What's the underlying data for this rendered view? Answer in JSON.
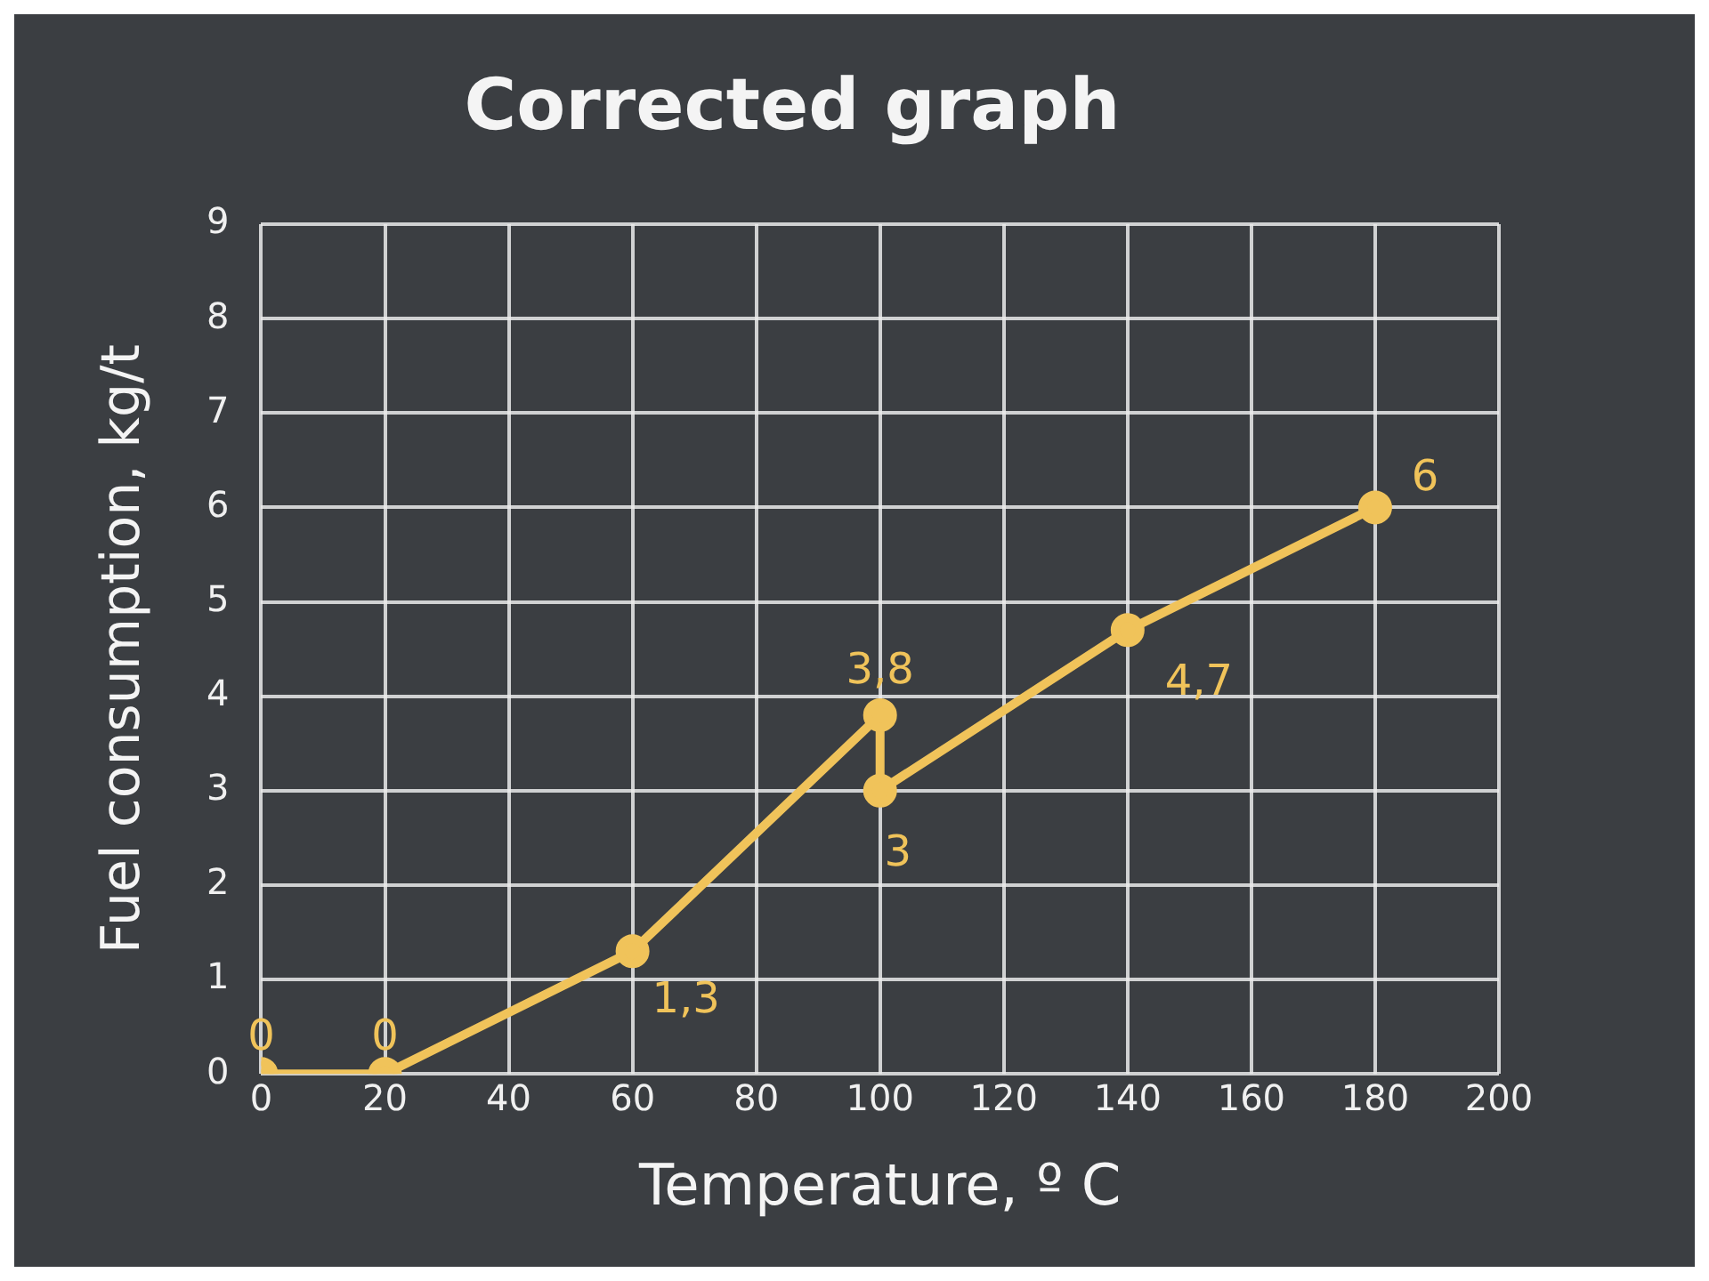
{
  "chart_data": {
    "type": "line",
    "title": "Corrected graph",
    "xlabel": "Temperature, º C",
    "ylabel": "Fuel consumption, kg/t",
    "x": [
      0,
      20,
      60,
      100,
      100,
      140,
      180
    ],
    "series": [
      {
        "color": "#f0c35a",
        "values": [
          0,
          0,
          1.3,
          3.8,
          3,
          4.7,
          6
        ],
        "value_labels": [
          "0",
          "0",
          "1,3",
          "3,8",
          "3",
          "4,7",
          "6"
        ]
      }
    ],
    "xlim": [
      0,
      200
    ],
    "xticks": [
      0,
      20,
      40,
      60,
      80,
      100,
      120,
      140,
      160,
      180,
      200
    ],
    "ylim": [
      0,
      9
    ],
    "yticks": [
      0,
      1,
      2,
      3,
      4,
      5,
      6,
      7,
      8,
      9
    ],
    "grid": true,
    "marker": "circle",
    "line_style": "solid"
  }
}
